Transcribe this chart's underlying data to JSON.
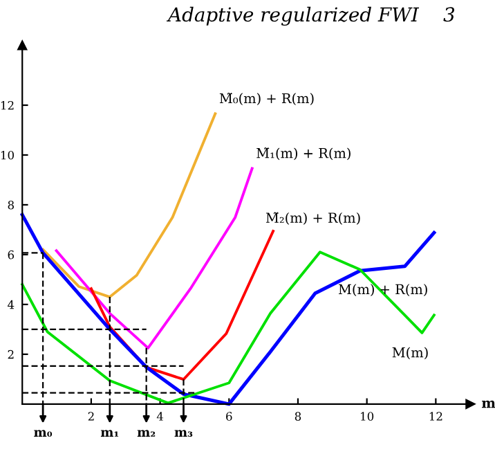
{
  "chart_data": {
    "type": "line",
    "xlabel": "m",
    "annotations": [
      "Adaptive regularized FWI",
      "3",
      {
        "text": "m₀",
        "x": 0.6,
        "y": 0
      },
      {
        "text": "m₁",
        "x": 2.54,
        "y": 0
      },
      {
        "text": "m₂",
        "x": 3.6,
        "y": 0
      },
      {
        "text": "m₃",
        "x": 4.68,
        "y": 0
      }
    ],
    "series": [
      {
        "name": "M̃₀(m) + R(m)",
        "color": "#f0b030",
        "x": [
          0.6,
          1.64,
          2.54,
          3.32,
          4.36,
          5.6
        ],
        "values": [
          6.2,
          4.72,
          4.3,
          5.17,
          7.5,
          11.66
        ]
      },
      {
        "name": "M̃₁(m) + R(m)",
        "color": "#ff00ff",
        "x": [
          0.99,
          2.54,
          3.65,
          4.88,
          6.18,
          6.67
        ],
        "values": [
          6.16,
          3.64,
          2.25,
          4.63,
          7.5,
          9.46
        ]
      },
      {
        "name": "M̃₂(m) + R(m)",
        "color": "#ff0000",
        "x": [
          2.0,
          2.54,
          3.6,
          4.68,
          5.92,
          7.28
        ],
        "values": [
          4.63,
          3.1,
          1.48,
          0.99,
          2.83,
          6.94
        ]
      },
      {
        "name": "M(m) + R(m)",
        "color": "#0000ff",
        "x": [
          0,
          0.6,
          2.54,
          3.6,
          4.68,
          6.0,
          7.2,
          8.5,
          9.8,
          11.1,
          11.95
        ],
        "values": [
          7.6,
          6.07,
          3.0,
          1.48,
          0.4,
          0,
          2.1,
          4.45,
          5.35,
          5.53,
          6.88
        ]
      },
      {
        "name": "M(m)",
        "color": "#00e000",
        "x": [
          0,
          0.73,
          2.54,
          4.23,
          6.0,
          7.2,
          8.64,
          9.8,
          11.1,
          11.6,
          11.95
        ],
        "values": [
          4.8,
          2.9,
          0.94,
          0.04,
          0.85,
          3.64,
          6.1,
          5.4,
          3.57,
          2.86,
          3.57
        ]
      },
      {
        "color": "#000000",
        "line_style": "dashed",
        "x": [
          0,
          0.6
        ],
        "values": [
          6.07,
          6.07
        ]
      },
      {
        "color": "#000000",
        "line_style": "dashed",
        "x": [
          0,
          3.6
        ],
        "values": [
          3.0,
          3.0
        ]
      },
      {
        "color": "#000000",
        "line_style": "dashed",
        "x": [
          0,
          4.68
        ],
        "values": [
          1.53,
          1.53
        ]
      },
      {
        "color": "#000000",
        "line_style": "dashed",
        "x": [
          0,
          5.0
        ],
        "values": [
          0.45,
          0.45
        ]
      },
      {
        "color": "#000000",
        "line_style": "dashed",
        "x": [
          0.6,
          0.6
        ],
        "values": [
          6.07,
          0
        ]
      },
      {
        "color": "#000000",
        "line_style": "dashed",
        "x": [
          2.54,
          2.54
        ],
        "values": [
          4.3,
          0
        ]
      },
      {
        "color": "#000000",
        "line_style": "dashed",
        "x": [
          3.6,
          3.6
        ],
        "values": [
          2.25,
          0
        ]
      },
      {
        "color": "#000000",
        "line_style": "dashed",
        "x": [
          4.68,
          4.68
        ],
        "values": [
          0.99,
          0
        ]
      }
    ],
    "xlim": [
      0,
      13
    ],
    "ylim": [
      0,
      14.4
    ],
    "xticks": [
      2,
      4,
      6,
      8,
      10,
      12
    ],
    "yticks": [
      2,
      4,
      6,
      8,
      10,
      12
    ],
    "grid": false,
    "legend": false,
    "marker": "none",
    "line_style": "solid"
  }
}
